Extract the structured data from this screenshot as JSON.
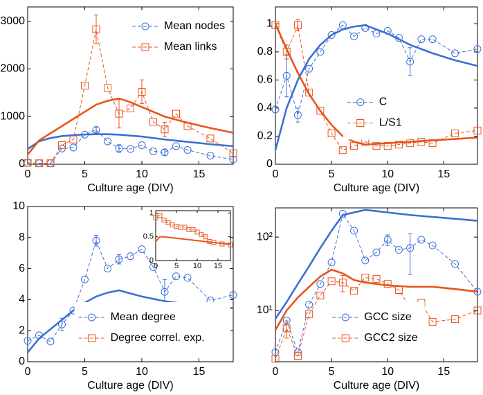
{
  "chart_data": [
    {
      "type": "line",
      "xlabel": "Culture age (DIV)",
      "xlim": [
        0,
        18
      ],
      "xticks": [
        0,
        5,
        10,
        15
      ],
      "ylim": [
        0,
        3300
      ],
      "yticks": [
        0,
        1000,
        2000,
        3000
      ],
      "legend": "upper right",
      "series": [
        {
          "name": "Mean nodes",
          "color": "#3b6fd6",
          "marker": "circle",
          "style": "dashed",
          "x": [
            0,
            1,
            2,
            3,
            4,
            5,
            6,
            7,
            8,
            9,
            10,
            11,
            12,
            13,
            14,
            16,
            18
          ],
          "values": [
            30,
            20,
            20,
            330,
            350,
            620,
            720,
            480,
            330,
            320,
            400,
            270,
            250,
            380,
            300,
            180,
            100
          ],
          "errors": [
            null,
            null,
            null,
            null,
            null,
            null,
            60,
            null,
            80,
            null,
            null,
            null,
            60,
            null,
            null,
            null,
            null
          ]
        },
        {
          "name": "Mean links",
          "color": "#e8541a",
          "marker": "square",
          "style": "dashed",
          "x": [
            0,
            1,
            2,
            3,
            4,
            5,
            6,
            7,
            8,
            9,
            10,
            11,
            12,
            13,
            14,
            16,
            18
          ],
          "values": [
            30,
            20,
            20,
            400,
            520,
            1650,
            2830,
            1600,
            1060,
            1170,
            1520,
            890,
            730,
            1060,
            800,
            540,
            230
          ],
          "errors": [
            null,
            null,
            null,
            null,
            null,
            null,
            300,
            null,
            300,
            null,
            250,
            null,
            150,
            null,
            null,
            null,
            null
          ]
        },
        {
          "color": "#3b6fd6",
          "style": "fit",
          "x": [
            0,
            1,
            2,
            3,
            4,
            5,
            6,
            7,
            8,
            10,
            12,
            14,
            16,
            18
          ],
          "values": [
            320,
            480,
            550,
            590,
            610,
            625,
            630,
            630,
            620,
            580,
            520,
            470,
            420,
            380
          ]
        },
        {
          "color": "#e8541a",
          "style": "fit",
          "x": [
            0,
            1,
            2,
            3,
            4,
            5,
            6,
            7,
            8,
            9,
            10,
            12,
            14,
            16,
            18
          ],
          "values": [
            200,
            500,
            650,
            800,
            950,
            1100,
            1250,
            1330,
            1380,
            1300,
            1200,
            1000,
            870,
            760,
            660
          ]
        }
      ]
    },
    {
      "type": "line",
      "xlabel": "Culture age (DIV)",
      "xlim": [
        0,
        18
      ],
      "xticks": [
        0,
        5,
        10,
        15
      ],
      "ylim": [
        0,
        1.12
      ],
      "yticks": [
        0,
        0.2,
        0.4,
        0.6,
        0.8,
        1
      ],
      "legend": "center",
      "series": [
        {
          "name": "C",
          "color": "#3b6fd6",
          "marker": "circle",
          "style": "dashed",
          "x": [
            0,
            1,
            2,
            3,
            4,
            5,
            6,
            7,
            8,
            9,
            10,
            11,
            12,
            13,
            14,
            16,
            18
          ],
          "values": [
            0.39,
            0.63,
            0.35,
            0.68,
            0.8,
            0.92,
            0.99,
            0.91,
            0.97,
            0.93,
            0.95,
            0.9,
            0.73,
            0.89,
            0.89,
            0.79,
            0.82
          ],
          "errors": [
            null,
            0.15,
            0.05,
            null,
            null,
            null,
            null,
            null,
            null,
            null,
            null,
            null,
            0.1,
            null,
            null,
            null,
            null
          ]
        },
        {
          "name": "L/S1",
          "color": "#e8541a",
          "marker": "square",
          "style": "dashed",
          "x": [
            0,
            1,
            2,
            3,
            4,
            5,
            6,
            7,
            8,
            9,
            10,
            11,
            12,
            13,
            14,
            16,
            18
          ],
          "values": [
            0.99,
            0.8,
            0.99,
            0.51,
            0.38,
            0.22,
            0.1,
            0.13,
            0.16,
            0.13,
            0.13,
            0.14,
            0.15,
            0.16,
            0.15,
            0.22,
            0.24
          ],
          "errors": [
            null,
            0.05,
            0.04,
            null,
            null,
            null,
            null,
            null,
            null,
            null,
            null,
            null,
            null,
            null,
            null,
            null,
            null
          ]
        },
        {
          "color": "#3b6fd6",
          "style": "fit",
          "x": [
            0,
            1,
            2,
            3,
            4,
            5,
            6,
            7,
            8,
            10,
            12,
            14,
            16,
            18
          ],
          "values": [
            0.1,
            0.4,
            0.6,
            0.75,
            0.85,
            0.92,
            0.96,
            0.98,
            0.99,
            0.93,
            0.85,
            0.79,
            0.74,
            0.7
          ]
        },
        {
          "color": "#e8541a",
          "style": "fit",
          "x": [
            0,
            1,
            2,
            3,
            4,
            5,
            6,
            7,
            8,
            10,
            12,
            14,
            16,
            18
          ],
          "values": [
            1,
            0.82,
            0.65,
            0.5,
            0.38,
            0.28,
            0.2,
            0.16,
            0.14,
            0.15,
            0.16,
            0.17,
            0.18,
            0.19
          ]
        }
      ]
    },
    {
      "type": "line",
      "xlabel": "Culture age (DIV)",
      "xlim": [
        0,
        18
      ],
      "xticks": [
        0,
        5,
        10,
        15
      ],
      "ylim": [
        0,
        10
      ],
      "yticks": [
        0,
        2,
        4,
        6,
        8,
        10
      ],
      "legend": "lower right",
      "series": [
        {
          "name": "Mean degree",
          "color": "#3b6fd6",
          "marker": "circle",
          "style": "dashed",
          "x": [
            0,
            1,
            2,
            3,
            4,
            5,
            6,
            7,
            8,
            9,
            10,
            11,
            12,
            13,
            14,
            16,
            18
          ],
          "values": [
            1.35,
            1.7,
            1.3,
            2.4,
            3.3,
            5.3,
            7.8,
            6,
            6.6,
            6.8,
            7.25,
            6.1,
            4.5,
            5.5,
            5.4,
            3.95,
            4.3
          ],
          "errors": [
            null,
            null,
            null,
            0.4,
            null,
            null,
            0.35,
            null,
            0.3,
            null,
            null,
            null,
            0.8,
            null,
            null,
            null,
            null
          ]
        },
        {
          "color": "#3b6fd6",
          "style": "fit",
          "x": [
            0,
            1,
            2,
            3,
            4,
            5,
            6,
            7,
            8,
            10,
            12,
            14,
            16,
            18
          ],
          "values": [
            0.6,
            1.5,
            2.1,
            2.7,
            3.3,
            3.8,
            4.2,
            4.45,
            4.6,
            4.2,
            3.9,
            3.7,
            3.55,
            3.45
          ]
        }
      ],
      "inset": {
        "xlim": [
          0,
          18
        ],
        "xticks": [
          0,
          5,
          10,
          15
        ],
        "ylim": [
          0,
          1.05
        ],
        "yticks": [
          0,
          0.5,
          1
        ],
        "series": [
          {
            "name": "Degree correl. exp.",
            "color": "#e8541a",
            "marker": "square",
            "style": "dashed",
            "x": [
              0,
              1,
              2,
              3,
              4,
              5,
              6,
              7,
              8,
              9,
              10,
              11,
              12,
              13,
              14,
              16,
              18
            ],
            "values": [
              0.9,
              0.95,
              0.85,
              0.8,
              0.75,
              0.72,
              0.7,
              0.7,
              0.65,
              0.65,
              0.6,
              0.55,
              0.5,
              0.4,
              0.38,
              0.35,
              0.33
            ]
          },
          {
            "color": "#e8541a",
            "style": "fit",
            "x": [
              0,
              1,
              2,
              4,
              6,
              8,
              10,
              12,
              14,
              16,
              18
            ],
            "values": [
              0.4,
              0.5,
              0.5,
              0.48,
              0.46,
              0.44,
              0.42,
              0.4,
              0.38,
              0.36,
              0.35
            ]
          }
        ]
      }
    },
    {
      "type": "line",
      "xlabel": "Culture age (DIV)",
      "xlim": [
        0,
        18
      ],
      "xticks": [
        0,
        5,
        10,
        15
      ],
      "ylim": [
        2,
        250
      ],
      "yscale": "log",
      "yticks": [
        {
          "value": 10,
          "label": "10¹"
        },
        {
          "value": 100,
          "label": "10²"
        }
      ],
      "legend": "lower center",
      "series": [
        {
          "name": "GCC size",
          "color": "#3b6fd6",
          "marker": "circle",
          "style": "dashed",
          "x": [
            0,
            1,
            2,
            3,
            4,
            5,
            6,
            7,
            8,
            9,
            10,
            11,
            12,
            13,
            14,
            16,
            18
          ],
          "values": [
            2.7,
            7.3,
            2.7,
            12,
            23,
            45,
            208,
            122,
            48,
            62,
            92,
            67,
            71,
            92,
            77,
            43,
            18
          ],
          "errors": [
            null,
            null,
            null,
            null,
            null,
            null,
            null,
            null,
            null,
            null,
            15,
            null,
            40,
            null,
            null,
            null,
            null
          ]
        },
        {
          "name": "GCC2 size",
          "color": "#e8541a",
          "marker": "square",
          "style": "dashed",
          "x": [
            0,
            1,
            2,
            3,
            4,
            5,
            6,
            7,
            8,
            9,
            10,
            11,
            12,
            13,
            14,
            16,
            18
          ],
          "values": [
            2.2,
            5.7,
            2.4,
            8.9,
            16,
            25,
            24,
            18.5,
            28,
            27,
            23,
            19,
            11,
            12.7,
            7,
            7.6,
            10
          ],
          "errors": [
            null,
            1.5,
            null,
            null,
            null,
            null,
            6,
            null,
            null,
            null,
            null,
            null,
            null,
            null,
            null,
            null,
            null
          ]
        },
        {
          "color": "#3b6fd6",
          "style": "fit",
          "x": [
            0,
            1,
            2,
            3,
            4,
            5,
            6,
            8,
            12,
            18
          ],
          "values": [
            7.7,
            13,
            23,
            40,
            71,
            122,
            200,
            235,
            200,
            167
          ]
        },
        {
          "color": "#e8541a",
          "style": "fit",
          "x": [
            0,
            1,
            2,
            3,
            4,
            5,
            6,
            7,
            8,
            10,
            12,
            14,
            16,
            18
          ],
          "values": [
            5.4,
            10,
            15,
            21,
            29,
            36,
            32,
            26,
            24,
            22,
            21,
            21,
            19.6,
            18
          ]
        }
      ]
    }
  ]
}
